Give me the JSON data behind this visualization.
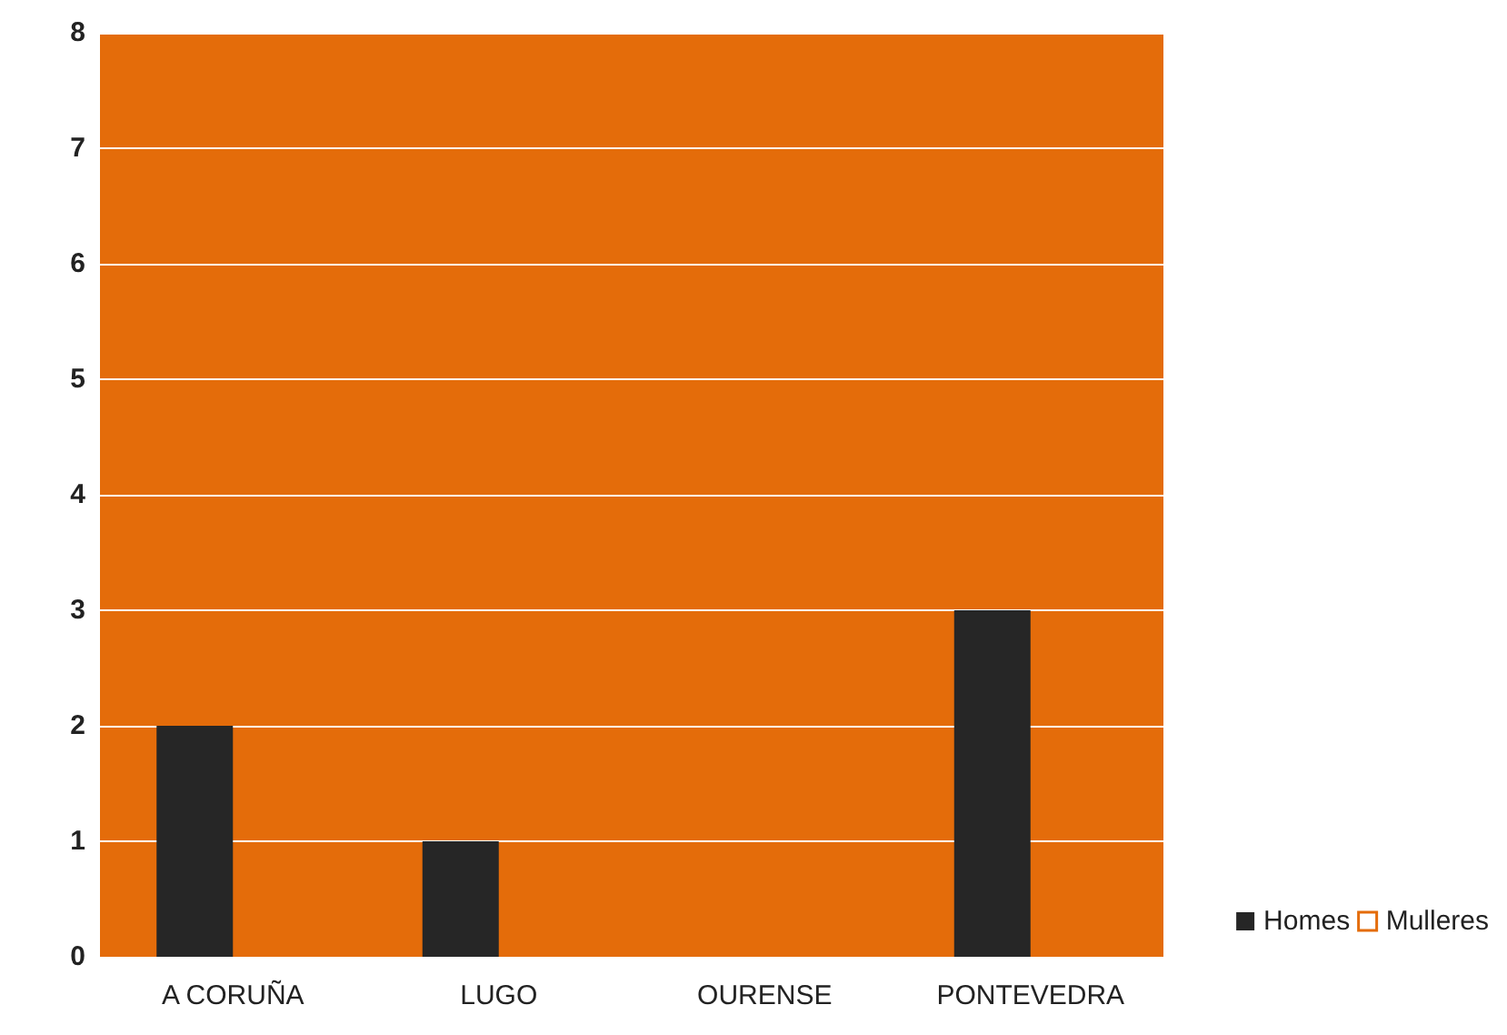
{
  "chart_data": {
    "type": "bar",
    "categories": [
      "A CORUÑA",
      "LUGO",
      "OURENSE",
      "PONTEVEDRA"
    ],
    "series": [
      {
        "name": "Homes",
        "color": "#262626",
        "values": [
          2,
          1,
          0,
          3
        ]
      },
      {
        "name": "Mulleres",
        "color": "#e46c0a",
        "values": [
          null,
          null,
          null,
          null
        ]
      }
    ],
    "ylim": [
      0,
      8
    ],
    "yticks": [
      0,
      1,
      2,
      3,
      4,
      5,
      6,
      7,
      8
    ],
    "grid": "y",
    "legend": "right"
  }
}
